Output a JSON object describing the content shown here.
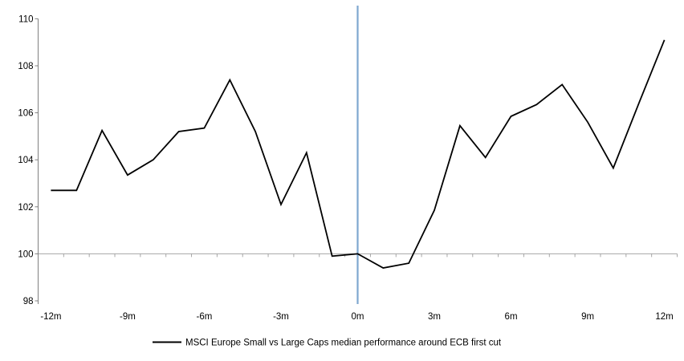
{
  "page": {
    "background": "#FFFFFF"
  },
  "chart_data": {
    "type": "line",
    "title": "",
    "x": [
      -12,
      -11,
      -10,
      -9,
      -8,
      -7,
      -6,
      -5,
      -4,
      -3,
      -2,
      -1,
      0,
      1,
      2,
      3,
      4,
      5,
      6,
      7,
      8,
      9,
      10,
      11,
      12
    ],
    "series": [
      {
        "name": "MSCI Europe Small vs Large Caps median performance around ECB first cut",
        "color": "#000000",
        "values": [
          102.7,
          102.7,
          105.25,
          103.35,
          104.0,
          105.2,
          105.35,
          107.4,
          105.2,
          102.1,
          104.3,
          99.9,
          100.0,
          99.4,
          99.6,
          101.85,
          105.45,
          104.1,
          105.85,
          106.35,
          107.2,
          105.6,
          103.65,
          106.4,
          109.1
        ]
      }
    ],
    "ylim": [
      98,
      110.5
    ],
    "y_ticks": [
      "110",
      "108",
      "106",
      "104",
      "102",
      "100",
      "98"
    ],
    "y_tick_values": [
      110,
      108,
      106,
      104,
      102,
      100,
      98
    ],
    "x_tick_labels": [
      "-12m",
      "-9m",
      "-6m",
      "-3m",
      "0m",
      "3m",
      "6m",
      "9m",
      "12m"
    ],
    "x_tick_months": [
      -12,
      -9,
      -6,
      -3,
      0,
      3,
      6,
      9,
      12
    ],
    "baseline_value": 100,
    "event_line": {
      "x_month": 0,
      "color": "#7FA8D0"
    },
    "colors": {
      "series_line": "#000000",
      "axis_spine": "#808080",
      "baseline": "#A6A6A6",
      "text": "#000000"
    },
    "grid": false,
    "legend_position": "bottom-center"
  }
}
